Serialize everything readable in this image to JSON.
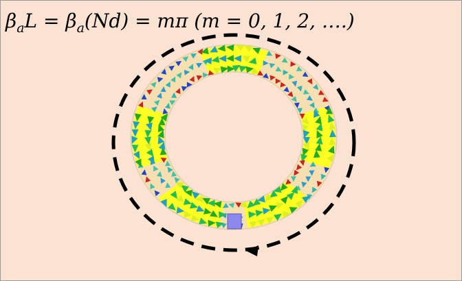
{
  "equation_segments": [
    "β",
    "a",
    "L = ",
    "β",
    "a",
    "(Nd) = mπ (m = 0, 1, 2, ….)"
  ]
}
